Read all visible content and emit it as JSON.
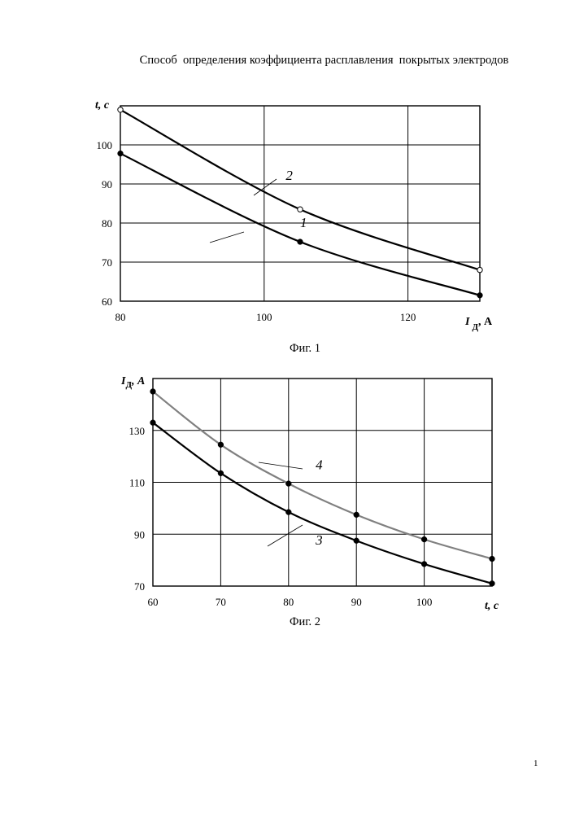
{
  "document": {
    "title": "Способ  определения коэффициента расплавления  покрытых электродов",
    "page_number": "1"
  },
  "colors": {
    "line": "#000000",
    "series4": "#808080",
    "grid": "#000000"
  },
  "chart_data": [
    {
      "type": "line",
      "caption": "Фиг. 1",
      "xlabel": "I",
      "xlabel_sub": "Д",
      "xlabel_unit": ", А",
      "ylabel": "t, с",
      "xlim": [
        80,
        130
      ],
      "ylim": [
        60,
        110
      ],
      "xticks": [
        80,
        100,
        120
      ],
      "yticks": [
        60,
        70,
        80,
        90,
        100
      ],
      "grid": true,
      "series": [
        {
          "label": "1",
          "marker": "filled",
          "color": "#000000",
          "x": [
            80,
            105,
            130
          ],
          "y": [
            97.8,
            75.2,
            61.5
          ],
          "label_at": [
            105,
            79
          ]
        },
        {
          "label": "2",
          "marker": "open",
          "color": "#000000",
          "x": [
            80,
            105,
            130
          ],
          "y": [
            109,
            83.5,
            68
          ],
          "label_at": [
            103,
            91
          ]
        }
      ]
    },
    {
      "type": "line",
      "caption": "Фиг. 2",
      "xlabel": "t, с",
      "ylabel": "I",
      "ylabel_sub": "Д",
      "ylabel_unit": ", А",
      "xlim": [
        60,
        110
      ],
      "ylim": [
        70,
        150
      ],
      "xticks": [
        60,
        70,
        80,
        90,
        100
      ],
      "yticks": [
        70,
        90,
        110,
        130
      ],
      "grid": true,
      "series": [
        {
          "label": "3",
          "marker": "filled",
          "color": "#000000",
          "x": [
            60,
            70,
            80,
            90,
            100,
            110
          ],
          "y": [
            133,
            113.5,
            98.5,
            87.5,
            78.5,
            71
          ],
          "label_at": [
            84,
            86
          ]
        },
        {
          "label": "4",
          "marker": "filled",
          "color": "#808080",
          "x": [
            60,
            70,
            80,
            90,
            100,
            110
          ],
          "y": [
            145,
            124.5,
            109.5,
            97.5,
            88,
            80.5
          ],
          "label_at": [
            84,
            115
          ]
        }
      ]
    }
  ]
}
